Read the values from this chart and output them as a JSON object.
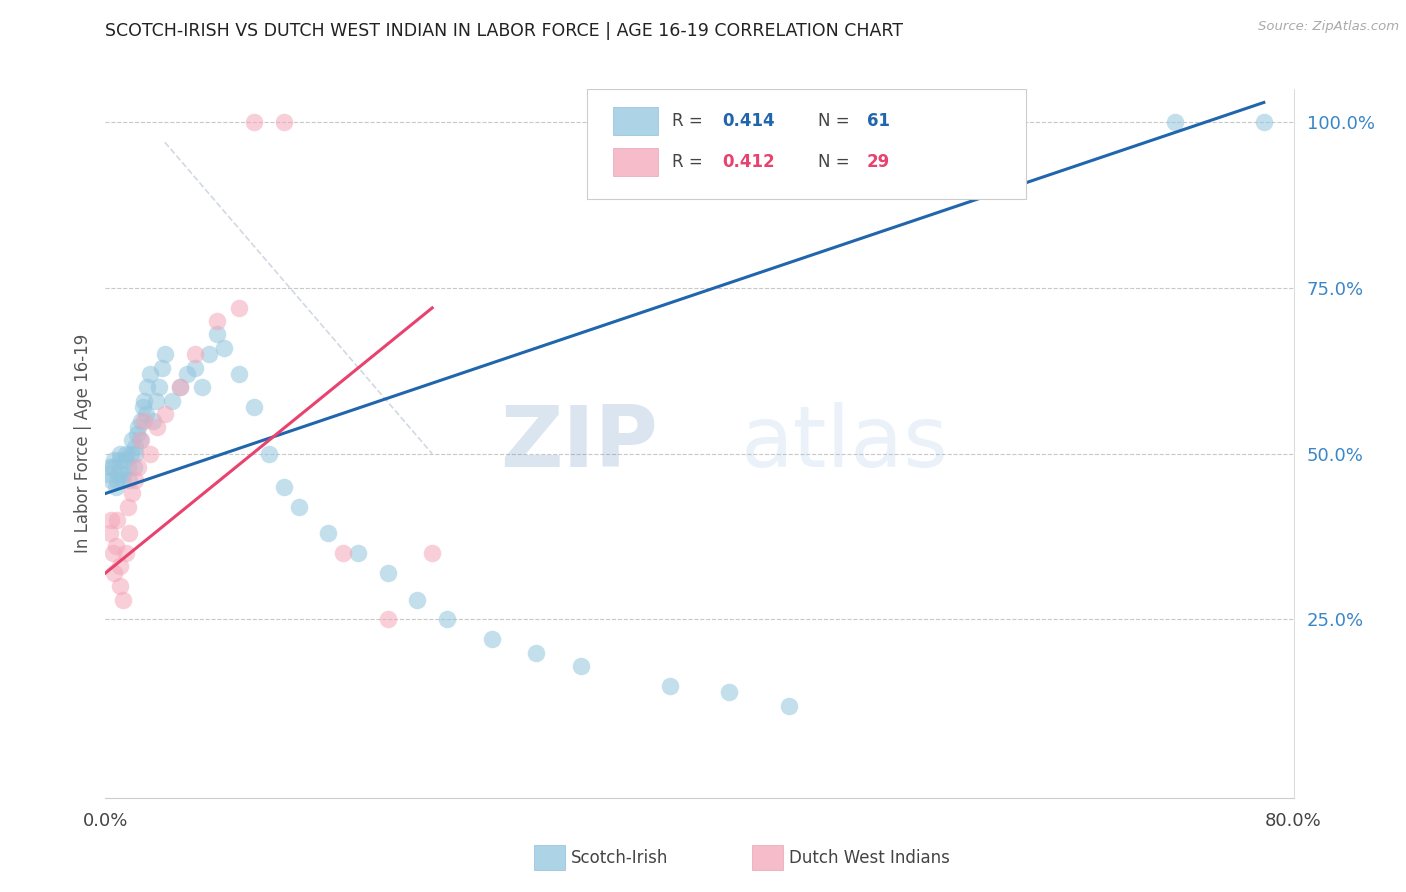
{
  "title": "SCOTCH-IRISH VS DUTCH WEST INDIAN IN LABOR FORCE | AGE 16-19 CORRELATION CHART",
  "source": "Source: ZipAtlas.com",
  "ylabel": "In Labor Force | Age 16-19",
  "watermark_zip": "ZIP",
  "watermark_atlas": "atlas",
  "xmin": 0.0,
  "xmax": 0.8,
  "ymin": 0.0,
  "ymax": 1.05,
  "legend_blue_label": "Scotch-Irish",
  "legend_pink_label": "Dutch West Indians",
  "R_blue": "0.414",
  "N_blue": "61",
  "R_pink": "0.412",
  "N_pink": "29",
  "blue_color": "#92c5de",
  "pink_color": "#f4a6b8",
  "blue_line_color": "#2166ac",
  "pink_line_color": "#e8426e",
  "blue_line_color_dashed": "#c0c8d8",
  "grid_color": "#c8c8c8",
  "right_axis_color": "#3a86c8",
  "scotch_irish_x": [
    0.002,
    0.003,
    0.004,
    0.005,
    0.006,
    0.007,
    0.008,
    0.009,
    0.01,
    0.01,
    0.011,
    0.012,
    0.013,
    0.014,
    0.015,
    0.016,
    0.017,
    0.018,
    0.019,
    0.02,
    0.02,
    0.021,
    0.022,
    0.023,
    0.024,
    0.025,
    0.026,
    0.027,
    0.028,
    0.03,
    0.032,
    0.034,
    0.036,
    0.038,
    0.04,
    0.045,
    0.05,
    0.055,
    0.06,
    0.065,
    0.07,
    0.075,
    0.08,
    0.09,
    0.1,
    0.11,
    0.12,
    0.13,
    0.15,
    0.17,
    0.19,
    0.21,
    0.23,
    0.26,
    0.29,
    0.32,
    0.38,
    0.42,
    0.46,
    0.72,
    0.78
  ],
  "scotch_irish_y": [
    0.47,
    0.48,
    0.46,
    0.48,
    0.49,
    0.45,
    0.46,
    0.47,
    0.49,
    0.5,
    0.46,
    0.47,
    0.49,
    0.5,
    0.48,
    0.46,
    0.5,
    0.52,
    0.48,
    0.5,
    0.51,
    0.53,
    0.54,
    0.52,
    0.55,
    0.57,
    0.58,
    0.56,
    0.6,
    0.62,
    0.55,
    0.58,
    0.6,
    0.63,
    0.65,
    0.58,
    0.6,
    0.62,
    0.63,
    0.6,
    0.65,
    0.68,
    0.66,
    0.62,
    0.57,
    0.5,
    0.45,
    0.42,
    0.38,
    0.35,
    0.32,
    0.28,
    0.25,
    0.22,
    0.2,
    0.18,
    0.15,
    0.14,
    0.12,
    1.0,
    1.0
  ],
  "dutch_x": [
    0.003,
    0.004,
    0.005,
    0.006,
    0.007,
    0.008,
    0.01,
    0.01,
    0.012,
    0.014,
    0.015,
    0.016,
    0.018,
    0.02,
    0.022,
    0.024,
    0.026,
    0.03,
    0.035,
    0.04,
    0.05,
    0.06,
    0.075,
    0.09,
    0.1,
    0.12,
    0.16,
    0.19,
    0.22
  ],
  "dutch_y": [
    0.38,
    0.4,
    0.35,
    0.32,
    0.36,
    0.4,
    0.3,
    0.33,
    0.28,
    0.35,
    0.42,
    0.38,
    0.44,
    0.46,
    0.48,
    0.52,
    0.55,
    0.5,
    0.54,
    0.56,
    0.6,
    0.65,
    0.7,
    0.72,
    1.0,
    1.0,
    0.35,
    0.25,
    0.35
  ],
  "blue_trendline_x": [
    0.0,
    0.78
  ],
  "blue_trendline_y": [
    0.44,
    1.03
  ],
  "pink_trendline_x": [
    0.0,
    0.22
  ],
  "pink_trendline_y": [
    0.32,
    0.72
  ]
}
